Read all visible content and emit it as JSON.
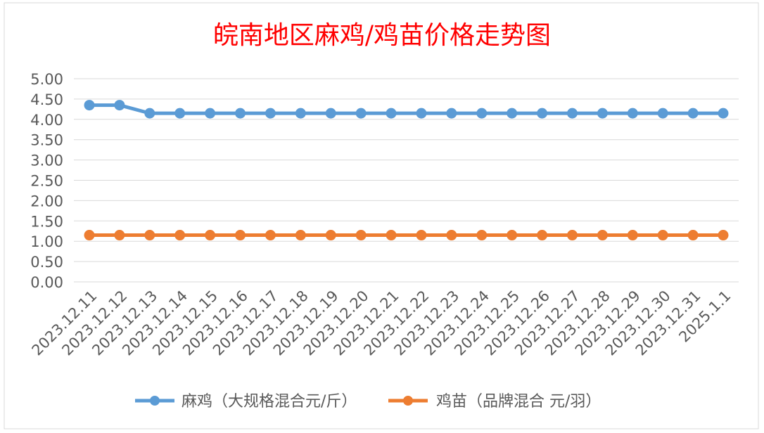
{
  "chart_data": {
    "type": "line",
    "title": "皖南地区麻鸡/鸡苗价格走势图",
    "title_color": "#ff0000",
    "categories": [
      "2023.12.11",
      "2023.12.12",
      "2023.12.13",
      "2023.12.14",
      "2023.12.15",
      "2023.12.16",
      "2023.12.17",
      "2023.12.18",
      "2023.12.19",
      "2023.12.20",
      "2023.12.21",
      "2023.12.22",
      "2023.12.23",
      "2023.12.24",
      "2023.12.25",
      "2023.12.26",
      "2023.12.27",
      "2023.12.28",
      "2023.12.29",
      "2023.12.30",
      "2023.12.31",
      "2025.1.1"
    ],
    "y_ticks": [
      "0.00",
      "0.50",
      "1.00",
      "1.50",
      "2.00",
      "2.50",
      "3.00",
      "3.50",
      "4.00",
      "4.50",
      "5.00"
    ],
    "ylim": [
      0,
      5
    ],
    "grid": true,
    "legend_position": "bottom",
    "series": [
      {
        "name": "麻鸡（大规格混合元/斤）",
        "color": "#5b9bd5",
        "values": [
          4.35,
          4.35,
          4.15,
          4.15,
          4.15,
          4.15,
          4.15,
          4.15,
          4.15,
          4.15,
          4.15,
          4.15,
          4.15,
          4.15,
          4.15,
          4.15,
          4.15,
          4.15,
          4.15,
          4.15,
          4.15,
          4.15
        ]
      },
      {
        "name": "鸡苗（品牌混合 元/羽）",
        "color": "#ed7d31",
        "values": [
          1.15,
          1.15,
          1.15,
          1.15,
          1.15,
          1.15,
          1.15,
          1.15,
          1.15,
          1.15,
          1.15,
          1.15,
          1.15,
          1.15,
          1.15,
          1.15,
          1.15,
          1.15,
          1.15,
          1.15,
          1.15,
          1.15
        ]
      }
    ]
  }
}
